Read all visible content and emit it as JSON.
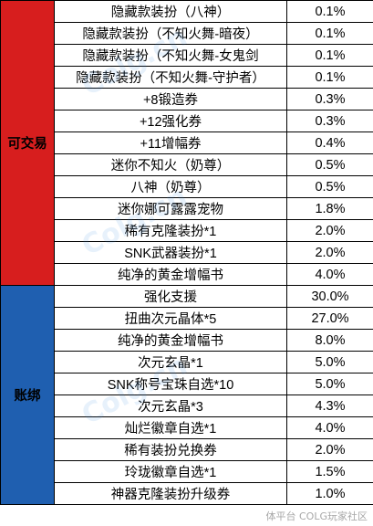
{
  "groups": [
    {
      "label": "可交易",
      "color": "#d71e1e",
      "rows": [
        {
          "item": "隐藏款装扮（八神）",
          "rate": "0.1%"
        },
        {
          "item": "隐藏款装扮（不知火舞-暗夜）",
          "rate": "0.1%"
        },
        {
          "item": "隐藏款装扮（不知火舞-女鬼剑",
          "rate": "0.1%"
        },
        {
          "item": "隐藏款装扮（不知火舞-守护者）",
          "rate": "0.1%"
        },
        {
          "item": "+8锻造券",
          "rate": "0.3%"
        },
        {
          "item": "+12强化券",
          "rate": "0.3%"
        },
        {
          "item": "+11增幅券",
          "rate": "0.4%"
        },
        {
          "item": "迷你不知火（奶尊）",
          "rate": "0.5%"
        },
        {
          "item": "八神（奶尊）",
          "rate": "0.5%"
        },
        {
          "item": "迷你娜可露露宠物",
          "rate": "1.8%"
        },
        {
          "item": "稀有克隆装扮*1",
          "rate": "2.0%"
        },
        {
          "item": "SNK武器装扮*1",
          "rate": "2.0%"
        },
        {
          "item": "纯净的黄金增幅书",
          "rate": "4.0%"
        }
      ]
    },
    {
      "label": "账绑",
      "color": "#1f5fb0",
      "rows": [
        {
          "item": "强化支援",
          "rate": "30.0%"
        },
        {
          "item": "扭曲次元晶体*5",
          "rate": "27.0%"
        },
        {
          "item": "纯净的黄金增幅书",
          "rate": "8.0%"
        },
        {
          "item": "次元玄晶*1",
          "rate": "5.0%"
        },
        {
          "item": "SNK称号宝珠自选*10",
          "rate": "5.0%"
        },
        {
          "item": "次元玄晶*3",
          "rate": "4.3%"
        },
        {
          "item": "灿烂徽章自选*1",
          "rate": "4.0%"
        },
        {
          "item": "稀有装扮兑换券",
          "rate": "2.0%"
        },
        {
          "item": "玲珑徽章自选*1",
          "rate": "1.5%"
        },
        {
          "item": "神器克隆装扮升级券",
          "rate": "1.0%"
        }
      ]
    }
  ],
  "watermark": "体平台 COLG玩家社区",
  "logo": "Colg.cn"
}
